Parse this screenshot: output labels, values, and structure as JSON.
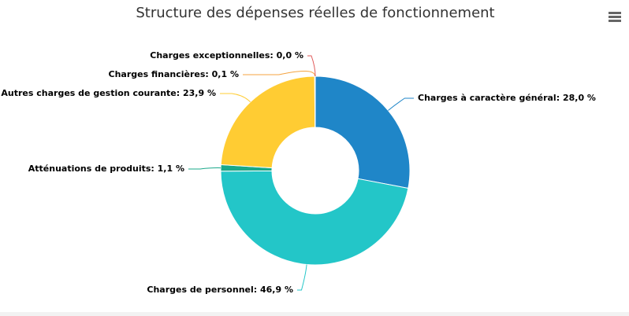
{
  "chart_data": {
    "type": "donut",
    "title": "Structure des dépenses réelles de fonctionnement",
    "categories": [
      "Charges à caractère général",
      "Charges de personnel",
      "Atténuations de produits",
      "Autres charges de gestion courante",
      "Charges financières",
      "Charges exceptionnelles"
    ],
    "values": [
      28.0,
      46.9,
      1.1,
      23.9,
      0.1,
      0.0
    ],
    "value_labels": [
      "28,0 %",
      "46,9 %",
      "1,1 %",
      "23,9 %",
      "0,1 %",
      "0,0 %"
    ],
    "colors": [
      "#1f86c8",
      "#23c6c8",
      "#1aa88a",
      "#ffcc33",
      "#f4a340",
      "#e05a5a"
    ]
  }
}
